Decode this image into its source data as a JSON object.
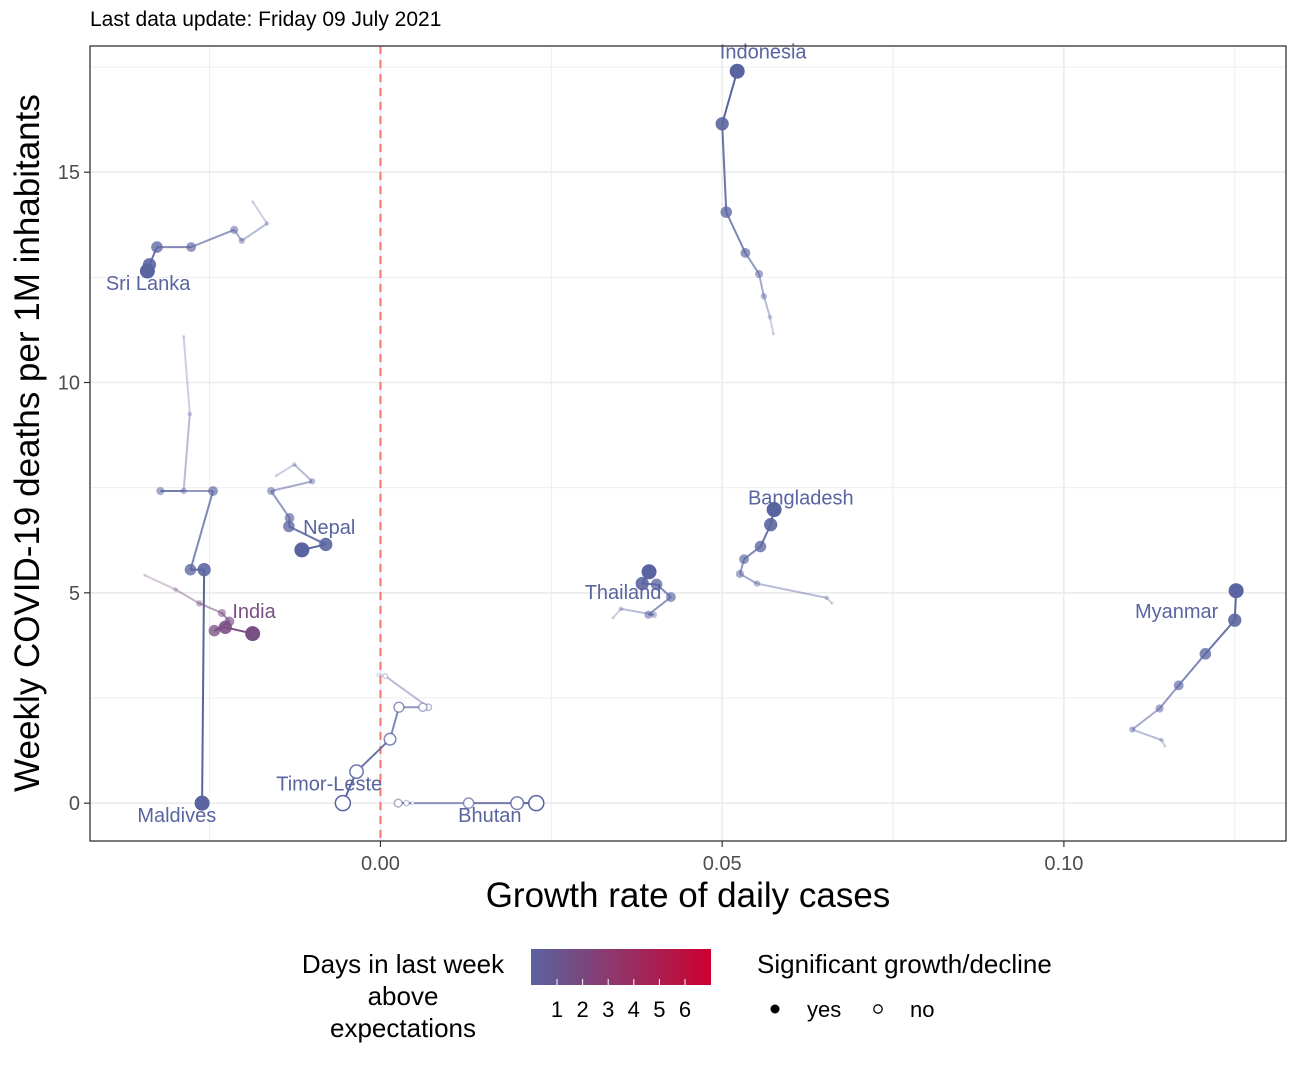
{
  "subtitle": "Last data update: Friday 09 July 2021",
  "chart_data": {
    "type": "scatter",
    "title": "",
    "xlabel": "Growth rate of daily cases",
    "ylabel": "Weekly COVID-19 deaths per 1M inhabitants",
    "xlim": [
      -0.0425,
      0.1325
    ],
    "ylim": [
      -0.9,
      18.0
    ],
    "x_ticks": [
      0.0,
      0.05,
      0.1
    ],
    "x_tick_labels": [
      "0.00",
      "0.05",
      "0.10"
    ],
    "y_ticks": [
      0,
      5,
      10,
      15
    ],
    "y_tick_labels": [
      "0",
      "5",
      "10",
      "15"
    ],
    "reference_line": {
      "x": 0,
      "color": "#f8766d",
      "style": "dashed"
    },
    "grid": true,
    "series": [
      {
        "name": "Indonesia",
        "color": "#5a64a0",
        "label_at": [
          0.056,
          17.7
        ],
        "points": [
          {
            "x": 0.0575,
            "y": 11.15
          },
          {
            "x": 0.057,
            "y": 11.55
          },
          {
            "x": 0.0561,
            "y": 12.05
          },
          {
            "x": 0.0554,
            "y": 12.58
          },
          {
            "x": 0.0534,
            "y": 13.08
          },
          {
            "x": 0.0506,
            "y": 14.05
          },
          {
            "x": 0.05,
            "y": 16.15
          },
          {
            "x": 0.0522,
            "y": 17.4
          }
        ]
      },
      {
        "name": "Sri Lanka",
        "color": "#5a64a0",
        "label_at": [
          -0.034,
          12.2
        ],
        "points": [
          {
            "x": -0.0187,
            "y": 14.3
          },
          {
            "x": -0.0166,
            "y": 13.78
          },
          {
            "x": -0.0203,
            "y": 13.37
          },
          {
            "x": -0.0214,
            "y": 13.63
          },
          {
            "x": -0.0277,
            "y": 13.22
          },
          {
            "x": -0.0327,
            "y": 13.22
          },
          {
            "x": -0.0338,
            "y": 12.8
          },
          {
            "x": -0.0341,
            "y": 12.65
          }
        ]
      },
      {
        "name": "Maldives",
        "color": "#5a64a0",
        "label_at": [
          -0.0298,
          -0.45
        ],
        "points": [
          {
            "x": -0.0288,
            "y": 11.1
          },
          {
            "x": -0.0279,
            "y": 9.25
          },
          {
            "x": -0.0288,
            "y": 7.42
          },
          {
            "x": -0.0322,
            "y": 7.42
          },
          {
            "x": -0.0245,
            "y": 7.42
          },
          {
            "x": -0.0278,
            "y": 5.55
          },
          {
            "x": -0.0258,
            "y": 5.55
          },
          {
            "x": -0.0261,
            "y": 0.0
          }
        ]
      },
      {
        "name": "Nepal",
        "color": "#5a64a0",
        "label_at": [
          -0.0075,
          6.4
        ],
        "points": [
          {
            "x": -0.0153,
            "y": 7.78
          },
          {
            "x": -0.0126,
            "y": 8.05
          },
          {
            "x": -0.01,
            "y": 7.65
          },
          {
            "x": -0.016,
            "y": 7.42
          },
          {
            "x": -0.0133,
            "y": 6.78
          },
          {
            "x": -0.0134,
            "y": 6.58
          },
          {
            "x": -0.008,
            "y": 6.15
          },
          {
            "x": -0.0115,
            "y": 6.02
          }
        ]
      },
      {
        "name": "India",
        "color": "#7a4f84",
        "label_at": [
          -0.0185,
          4.4
        ],
        "points": [
          {
            "x": -0.0345,
            "y": 5.42
          },
          {
            "x": -0.03,
            "y": 5.08
          },
          {
            "x": -0.0265,
            "y": 4.75
          },
          {
            "x": -0.0232,
            "y": 4.52
          },
          {
            "x": -0.0221,
            "y": 4.32
          },
          {
            "x": -0.0243,
            "y": 4.1
          },
          {
            "x": -0.0227,
            "y": 4.18
          },
          {
            "x": -0.0187,
            "y": 4.03
          }
        ]
      },
      {
        "name": "Timor-Leste",
        "color": "#5a64a0",
        "label_at": [
          -0.0075,
          0.3
        ],
        "points": [
          {
            "x": -0.0003,
            "y": 3.05
          },
          {
            "x": 0.0007,
            "y": 3.02
          },
          {
            "x": 0.007,
            "y": 2.28
          },
          {
            "x": 0.0062,
            "y": 2.28
          },
          {
            "x": 0.0027,
            "y": 2.28
          },
          {
            "x": 0.0014,
            "y": 1.52
          },
          {
            "x": -0.0035,
            "y": 0.75
          },
          {
            "x": -0.0055,
            "y": 0.0
          }
        ]
      },
      {
        "name": "Bhutan",
        "color": "#5a64a0",
        "label_at": [
          0.016,
          -0.45
        ],
        "points": [
          {
            "x": 0.0047,
            "y": 0.0
          },
          {
            "x": 0.0038,
            "y": 0.0
          },
          {
            "x": 0.0026,
            "y": 0.0
          },
          {
            "x": 0.0129,
            "y": 0.0
          },
          {
            "x": 0.02,
            "y": 0.0
          },
          {
            "x": 0.0228,
            "y": 0.0
          }
        ]
      },
      {
        "name": "Thailand",
        "color": "#5a64a0",
        "label_at": [
          0.0355,
          4.85
        ],
        "points": [
          {
            "x": 0.034,
            "y": 4.4
          },
          {
            "x": 0.0352,
            "y": 4.62
          },
          {
            "x": 0.04,
            "y": 4.48
          },
          {
            "x": 0.0392,
            "y": 4.48
          },
          {
            "x": 0.0425,
            "y": 4.9
          },
          {
            "x": 0.0404,
            "y": 5.2
          },
          {
            "x": 0.0383,
            "y": 5.22
          },
          {
            "x": 0.0393,
            "y": 5.5
          }
        ]
      },
      {
        "name": "Bangladesh",
        "color": "#5a64a0",
        "label_at": [
          0.0615,
          7.1
        ],
        "points": [
          {
            "x": 0.0661,
            "y": 4.75
          },
          {
            "x": 0.0653,
            "y": 4.88
          },
          {
            "x": 0.0551,
            "y": 5.22
          },
          {
            "x": 0.0526,
            "y": 5.45
          },
          {
            "x": 0.0532,
            "y": 5.8
          },
          {
            "x": 0.0556,
            "y": 6.1
          },
          {
            "x": 0.0571,
            "y": 6.62
          },
          {
            "x": 0.0576,
            "y": 6.98
          }
        ]
      },
      {
        "name": "Myanmar",
        "color": "#5a64a0",
        "label_at": [
          0.1165,
          4.4
        ],
        "points": [
          {
            "x": 0.1148,
            "y": 1.35
          },
          {
            "x": 0.1143,
            "y": 1.5
          },
          {
            "x": 0.11,
            "y": 1.75
          },
          {
            "x": 0.114,
            "y": 2.25
          },
          {
            "x": 0.1168,
            "y": 2.8
          },
          {
            "x": 0.1207,
            "y": 3.55
          },
          {
            "x": 0.125,
            "y": 4.35
          },
          {
            "x": 0.1252,
            "y": 5.05
          }
        ]
      }
    ],
    "legend_color": {
      "title_lines": [
        "Days in last week",
        "above",
        "expectations"
      ],
      "ticks": [
        "1",
        "2",
        "3",
        "4",
        "5",
        "6"
      ],
      "color_low": "#5a64a0",
      "color_high": "#cc0030"
    },
    "legend_shape": {
      "title": "Significant growth/decline",
      "items": [
        {
          "label": "yes",
          "filled": true
        },
        {
          "label": "no",
          "filled": false
        }
      ]
    },
    "hollow_series": [
      "Timor-Leste",
      "Bhutan"
    ]
  }
}
